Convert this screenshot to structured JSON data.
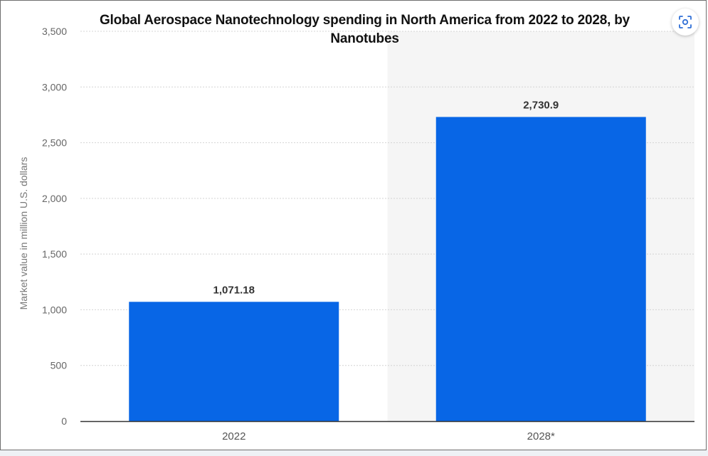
{
  "chart_data": {
    "type": "bar",
    "title": "Global Aerospace Nanotechnology spending in North America from 2022 to 2028, by Nanotubes",
    "xlabel": "",
    "ylabel": "Market value in million U.S. dollars",
    "categories": [
      "2022",
      "2028*"
    ],
    "values": [
      1071.18,
      2730.9
    ],
    "value_labels": [
      "1,071.18",
      "2,730.9"
    ],
    "ylim": [
      0,
      3500
    ],
    "yticks": [
      0,
      500,
      1000,
      1500,
      2000,
      2500,
      3000,
      3500
    ],
    "ytick_labels": [
      "0",
      "500",
      "1,000",
      "1,500",
      "2,000",
      "2,500",
      "3,000",
      "3,500"
    ],
    "grid": true,
    "forecast_shading": "2028*",
    "bar_color": "#0866e6",
    "shade_color": "#f5f5f5"
  },
  "toolbar": {
    "screenshot_icon": "screenshot-icon"
  }
}
